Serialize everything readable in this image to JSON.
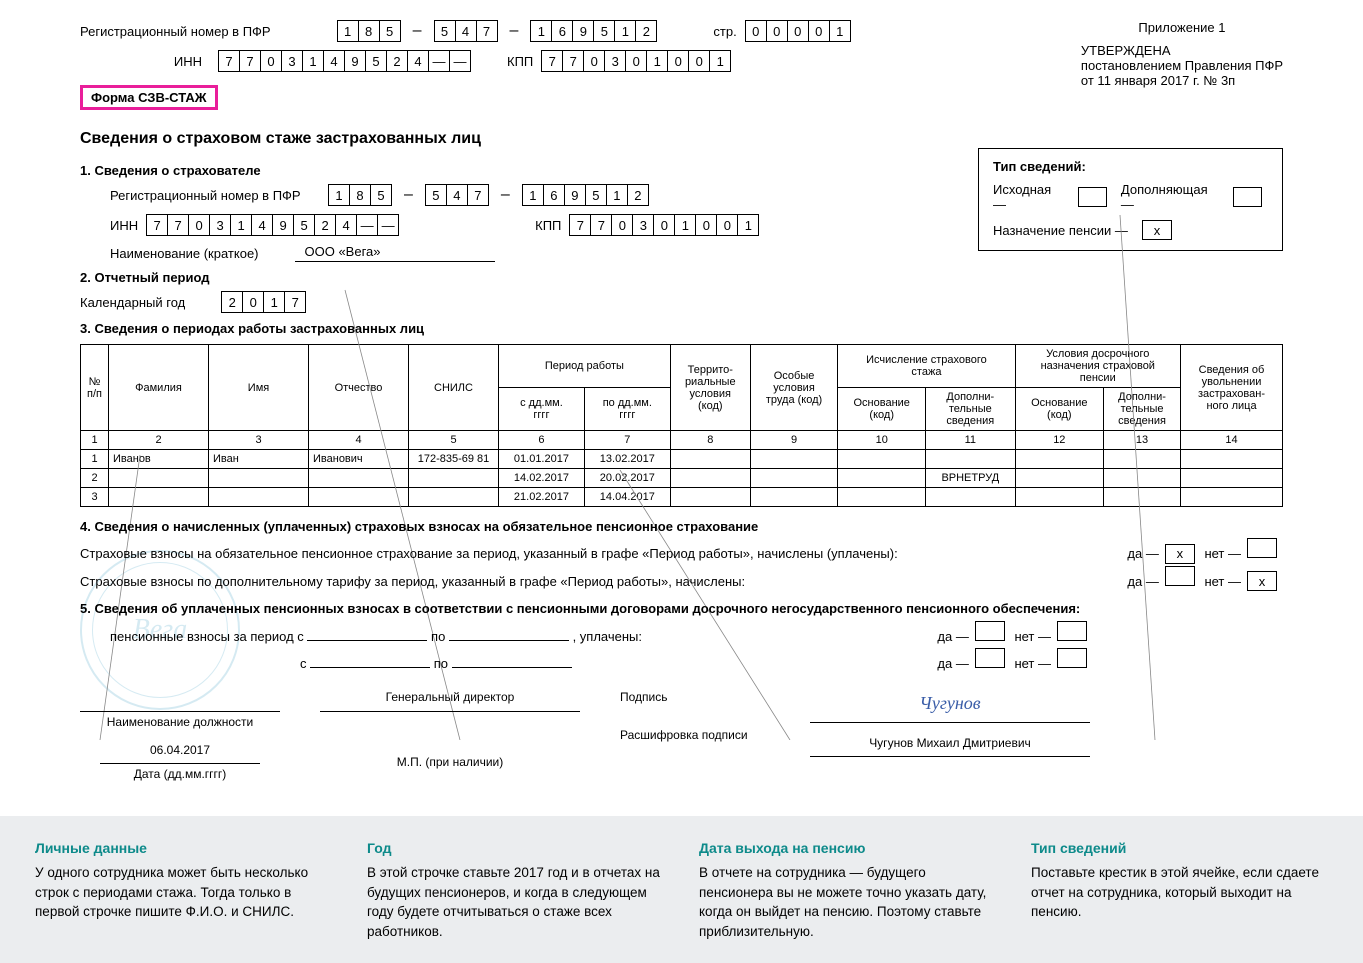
{
  "header": {
    "reg_label": "Регистрационный номер в ПФР",
    "reg1": [
      "1",
      "8",
      "5"
    ],
    "reg2": [
      "5",
      "4",
      "7"
    ],
    "reg3": [
      "1",
      "6",
      "9",
      "5",
      "1",
      "2"
    ],
    "str_label": "стр.",
    "str": [
      "0",
      "0",
      "0",
      "0",
      "1"
    ],
    "inn_label": "ИНН",
    "inn": [
      "7",
      "7",
      "0",
      "3",
      "1",
      "4",
      "9",
      "5",
      "2",
      "4",
      "—",
      "—"
    ],
    "kpp_label": "КПП",
    "kpp": [
      "7",
      "7",
      "0",
      "3",
      "0",
      "1",
      "0",
      "0",
      "1"
    ],
    "form": "Форма СЗВ-СТАЖ",
    "app": "Приложение 1",
    "utv": "УТВЕРЖДЕНА",
    "res1": "постановлением Правления ПФР",
    "res2": "от 11 января 2017 г. № 3п"
  },
  "title": "Сведения о страховом стаже застрахованных лиц",
  "s1": {
    "h": "1. Сведения о страхователе",
    "reg_label": "Регистрационный номер в ПФР",
    "reg1": [
      "1",
      "8",
      "5"
    ],
    "reg2": [
      "5",
      "4",
      "7"
    ],
    "reg3": [
      "1",
      "6",
      "9",
      "5",
      "1",
      "2"
    ],
    "inn_label": "ИНН",
    "inn": [
      "7",
      "7",
      "0",
      "3",
      "1",
      "4",
      "9",
      "5",
      "2",
      "4",
      "—",
      "—"
    ],
    "kpp_label": "КПП",
    "kpp": [
      "7",
      "7",
      "0",
      "3",
      "0",
      "1",
      "0",
      "0",
      "1"
    ],
    "name_label": "Наименование (краткое)",
    "name": "ООО «Вега»"
  },
  "tip": {
    "h": "Тип сведений:",
    "a": "Исходная —",
    "b": "Дополняющая —",
    "c": "Назначение пенсии —",
    "cv": "х"
  },
  "s2": {
    "h": "2. Отчетный период",
    "label": "Календарный год",
    "year": [
      "2",
      "0",
      "1",
      "7"
    ]
  },
  "s3": {
    "h": "3. Сведения о периодах работы застрахованных лиц",
    "cols": {
      "np": "№\nп/п",
      "fam": "Фамилия",
      "imya": "Имя",
      "otch": "Отчество",
      "snils": "СНИЛС",
      "period": "Период работы",
      "s": "с дд.мм.\nгггг",
      "po": "по дд.мм.\nгггг",
      "terr": "Террито-\nриальные\nусловия\n(код)",
      "osob": "Особые\nусловия\nтруда (код)",
      "isch": "Исчисление страхового\nстажа",
      "osn": "Основание\n(код)",
      "dop": "Дополни-\nтельные\nсведения",
      "usl": "Условия досрочного\nназначения страховой\nпенсии",
      "uvol": "Сведения об\nувольнении\nзастрахован-\nного лица"
    },
    "nums": [
      "1",
      "2",
      "3",
      "4",
      "5",
      "6",
      "7",
      "8",
      "9",
      "10",
      "11",
      "12",
      "13",
      "14"
    ],
    "rows": [
      {
        "n": "1",
        "fam": "Иванов",
        "imya": "Иван",
        "otch": "Иванович",
        "snils": "172-835-69 81",
        "s": "01.01.2017",
        "po": "13.02.2017",
        "dop": ""
      },
      {
        "n": "2",
        "fam": "",
        "imya": "",
        "otch": "",
        "snils": "",
        "s": "14.02.2017",
        "po": "20.02.2017",
        "dop": "ВРНЕТРУД"
      },
      {
        "n": "3",
        "fam": "",
        "imya": "",
        "otch": "",
        "snils": "",
        "s": "21.02.2017",
        "po": "14.04.2017",
        "dop": ""
      }
    ]
  },
  "s4": {
    "h": "4. Сведения о начисленных (уплаченных) страховых взносах на обязательное пенсионное страхование",
    "l1": "Страховые взносы на обязательное пенсионное страхование за период, указанный в графе «Период работы», начислены (уплачены):",
    "l2": "Страховые взносы по дополнительному тарифу за период, указанный в графе «Период работы», начислены:",
    "da": "да —",
    "net": "нет —",
    "x": "х"
  },
  "s5": {
    "h": "5. Сведения об уплаченных пенсионных взносах в соответствии с пенсионными договорами досрочного негосударственного пенсионного обеспечения:",
    "l1": "пенсионные взносы за период с",
    "po": "по",
    "upl": ", уплачены:",
    "s": "с",
    "da": "да —",
    "net": "нет —"
  },
  "sig": {
    "pos_label": "Наименование должности",
    "pos": "Генеральный директор",
    "date": "06.04.2017",
    "date_label": "Дата (дд.мм.гггг)",
    "mp": "М.П. (при наличии)",
    "podpis": "Подпись",
    "sig": "Чугунов",
    "ras": "Расшифровка подписи",
    "name": "Чугунов Михаил Дмитриевич"
  },
  "callouts": {
    "a": {
      "h": "Личные данные",
      "t": "У одного сотрудника может быть несколько строк с периодами стажа. Тогда только в первой строчке пишите Ф.И.О. и СНИЛС."
    },
    "b": {
      "h": "Год",
      "t": "В этой строчке ставьте 2017 год и в отчетах на будущих пенсионеров, и когда в следующем году будете отчитываться о стаже всех работников."
    },
    "c": {
      "h": "Дата выхода на пенсию",
      "t": "В отчете на сотрудника — будущего пенсионера вы не можете точно указать дату, когда он выйдет на пенсию. Поэтому ставьте приблизительную."
    },
    "d": {
      "h": "Тип сведений",
      "t": "Поставьте крестик в этой ячейке, если сдаете отчет на сотрудника, который выходит на пенсию."
    }
  }
}
